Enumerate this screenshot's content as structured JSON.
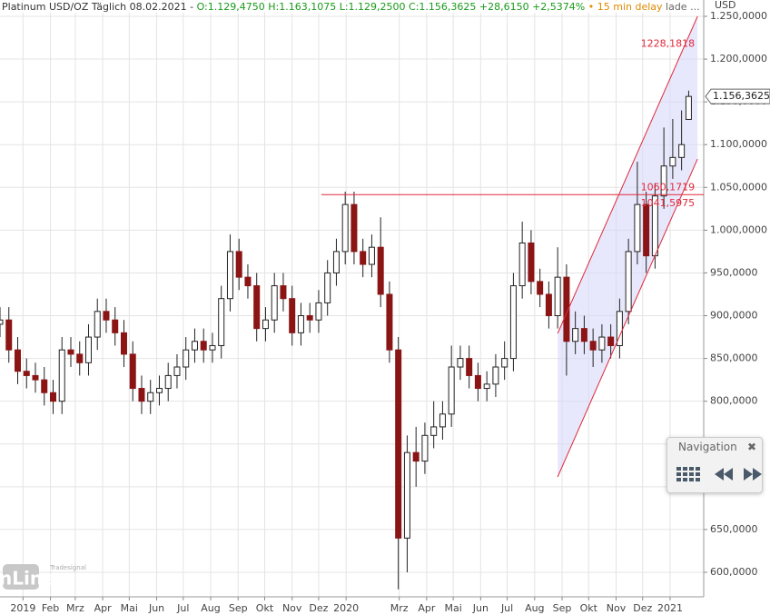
{
  "chart_data": {
    "type": "candlestick",
    "title": "Platinum USD/OZ Täglich 08.02.2021 -",
    "quote": "O:1.129,4750 H:1.163,1075 L:1.129,2500 C:1.156,3625 +28,6150 +2,5374%",
    "delay": "• 15 min delay",
    "status": "lade ...",
    "y_label": "USD",
    "up_color": "#ffffff",
    "down_color": "#8b1414",
    "grid": true,
    "xlim": [
      0,
      795
    ],
    "ylim": [
      571.3,
      1269.1
    ],
    "xticks": [
      {
        "value": 26,
        "label": "2019"
      },
      {
        "value": 57,
        "label": "Feb"
      },
      {
        "value": 85,
        "label": "Mrz"
      },
      {
        "value": 116,
        "label": "Apr"
      },
      {
        "value": 146,
        "label": "Mai"
      },
      {
        "value": 177,
        "label": "Jun"
      },
      {
        "value": 207,
        "label": "Jul"
      },
      {
        "value": 238,
        "label": "Aug"
      },
      {
        "value": 269,
        "label": "Sep"
      },
      {
        "value": 299,
        "label": "Okt"
      },
      {
        "value": 330,
        "label": "Nov"
      },
      {
        "value": 360,
        "label": "Dez"
      },
      {
        "value": 391,
        "label": "2020"
      },
      {
        "value": 451,
        "label": "Mrz"
      },
      {
        "value": 482,
        "label": "Apr"
      },
      {
        "value": 512,
        "label": "Mai"
      },
      {
        "value": 543,
        "label": "Jun"
      },
      {
        "value": 573,
        "label": "Jul"
      },
      {
        "value": 604,
        "label": "Aug"
      },
      {
        "value": 635,
        "label": "Sep"
      },
      {
        "value": 665,
        "label": "Okt"
      },
      {
        "value": 696,
        "label": "Nov"
      },
      {
        "value": 726,
        "label": "Dez"
      },
      {
        "value": 757,
        "label": "2021"
      }
    ],
    "yticks": [
      {
        "value": 600,
        "label": "600,0000"
      },
      {
        "value": 650,
        "label": "650,0000"
      },
      {
        "value": 700,
        "label": "700,0000"
      },
      {
        "value": 750,
        "label": "750,0000"
      },
      {
        "value": 800,
        "label": "800,0000"
      },
      {
        "value": 850,
        "label": "850,0000"
      },
      {
        "value": 900,
        "label": "900,0000"
      },
      {
        "value": 950,
        "label": "950,0000"
      },
      {
        "value": 1000,
        "label": "1.000,0000"
      },
      {
        "value": 1050,
        "label": "1.050,0000"
      },
      {
        "value": 1100,
        "label": "1.100,0000"
      },
      {
        "value": 1150,
        "label": "1.150,0000"
      },
      {
        "value": 1200,
        "label": "1.200,0000"
      },
      {
        "value": 1250,
        "label": "1.250,0000"
      }
    ],
    "x": [
      0,
      10,
      20,
      30,
      40,
      50,
      60,
      70,
      80,
      90,
      100,
      110,
      120,
      130,
      140,
      150,
      160,
      170,
      180,
      190,
      200,
      210,
      220,
      230,
      240,
      250,
      260,
      270,
      280,
      290,
      300,
      310,
      320,
      330,
      340,
      350,
      360,
      370,
      380,
      390,
      400,
      410,
      420,
      430,
      440,
      450,
      460,
      470,
      480,
      490,
      500,
      510,
      520,
      530,
      540,
      550,
      560,
      570,
      580,
      590,
      600,
      610,
      620,
      630,
      640,
      650,
      660,
      670,
      680,
      690,
      700,
      710,
      720,
      730,
      740,
      750,
      760,
      770,
      778
    ],
    "open": [
      890,
      895,
      860,
      835,
      830,
      825,
      810,
      800,
      860,
      855,
      845,
      875,
      905,
      895,
      880,
      855,
      815,
      800,
      810,
      815,
      830,
      840,
      860,
      870,
      860,
      865,
      920,
      975,
      945,
      935,
      885,
      895,
      935,
      920,
      880,
      900,
      895,
      915,
      950,
      975,
      1030,
      975,
      960,
      980,
      925,
      860,
      640,
      740,
      730,
      760,
      770,
      785,
      840,
      850,
      830,
      815,
      820,
      840,
      850,
      935,
      985,
      940,
      925,
      900,
      945,
      870,
      885,
      870,
      860,
      875,
      865,
      905,
      975,
      1030,
      970,
      1040,
      1075,
      1085,
      1129.475
    ],
    "high": [
      910,
      910,
      875,
      850,
      845,
      840,
      825,
      875,
      875,
      870,
      890,
      920,
      920,
      910,
      895,
      870,
      830,
      825,
      830,
      845,
      855,
      875,
      885,
      885,
      880,
      935,
      995,
      990,
      960,
      950,
      910,
      950,
      950,
      935,
      915,
      915,
      930,
      965,
      990,
      1045,
      1045,
      990,
      995,
      1015,
      940,
      875,
      760,
      770,
      775,
      800,
      800,
      865,
      865,
      865,
      845,
      835,
      855,
      870,
      950,
      1010,
      1000,
      955,
      940,
      980,
      960,
      905,
      900,
      885,
      890,
      890,
      920,
      990,
      1080,
      1045,
      1055,
      1120,
      1130,
      1140,
      1163.1075
    ],
    "low": [
      875,
      845,
      820,
      815,
      810,
      795,
      785,
      785,
      840,
      830,
      830,
      860,
      880,
      865,
      840,
      800,
      785,
      785,
      795,
      800,
      815,
      825,
      845,
      845,
      845,
      850,
      905,
      930,
      920,
      870,
      870,
      880,
      905,
      865,
      865,
      880,
      880,
      900,
      935,
      960,
      960,
      945,
      945,
      910,
      845,
      580,
      600,
      700,
      715,
      745,
      755,
      770,
      825,
      815,
      800,
      800,
      805,
      825,
      835,
      920,
      925,
      910,
      885,
      885,
      830,
      855,
      855,
      840,
      845,
      850,
      850,
      890,
      960,
      950,
      955,
      1025,
      1060,
      1070,
      1129.25
    ],
    "close": [
      895,
      860,
      835,
      830,
      825,
      810,
      800,
      860,
      855,
      845,
      875,
      905,
      895,
      880,
      855,
      815,
      800,
      810,
      815,
      830,
      840,
      860,
      870,
      860,
      865,
      920,
      975,
      945,
      935,
      885,
      895,
      935,
      920,
      880,
      900,
      895,
      915,
      950,
      975,
      1030,
      975,
      960,
      980,
      925,
      860,
      640,
      740,
      730,
      760,
      770,
      785,
      840,
      850,
      830,
      815,
      820,
      840,
      850,
      935,
      985,
      940,
      925,
      900,
      945,
      870,
      885,
      870,
      860,
      875,
      865,
      905,
      975,
      1030,
      970,
      1040,
      1075,
      1085,
      1100,
      1156.3625
    ],
    "last": {
      "value": 1156.3625,
      "label": "1.156,3625"
    },
    "line_color": "#e0283a",
    "channel_fill": "#d8d8fa",
    "channel": {
      "x": [
        630,
        788
      ],
      "upper": [
        879.3,
        1250
      ],
      "lower": [
        711.5,
        1083.2
      ]
    },
    "hline": {
      "x": [
        363,
        795
      ],
      "values": [
        1041.5975,
        1041.5975
      ]
    },
    "annotations": [
      {
        "value": 1228.1818,
        "label": "1228,1818",
        "x": 788
      },
      {
        "value": 1060.1719,
        "label": "1060,1719",
        "x": 788
      },
      {
        "value": 1041.5975,
        "label": "1041,5975",
        "x": 788
      }
    ]
  },
  "navigation": {
    "title": "Navigation"
  },
  "logo": {
    "brand": "Tradesignal",
    "name": "onLine"
  }
}
